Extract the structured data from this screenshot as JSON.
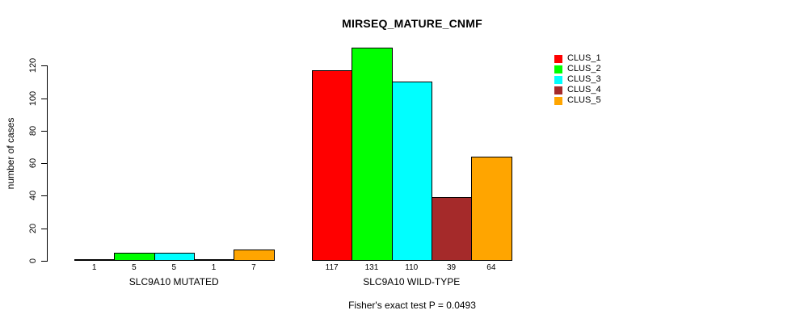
{
  "title": "MIRSEQ_MATURE_CNMF",
  "footer": {
    "fisher_text": "Fisher's exact test P = 0.0493"
  },
  "chart_data": {
    "type": "bar",
    "title": "MIRSEQ_MATURE_CNMF",
    "xlabel": "",
    "ylabel": "number of cases",
    "ylim": [
      0,
      131
    ],
    "yticks": [
      0,
      20,
      40,
      60,
      80,
      100,
      120
    ],
    "grid": false,
    "legend_position": "top-right",
    "bar_value_labels_shown": true,
    "categories": [
      "SLC9A10 MUTATED",
      "SLC9A10 WILD-TYPE"
    ],
    "series": [
      {
        "name": "CLUS_1",
        "color": "#FF0000",
        "values": [
          1,
          117
        ]
      },
      {
        "name": "CLUS_2",
        "color": "#00FF00",
        "values": [
          5,
          131
        ]
      },
      {
        "name": "CLUS_3",
        "color": "#00FFFF",
        "values": [
          5,
          110
        ]
      },
      {
        "name": "CLUS_4",
        "color": "#A52A2A",
        "values": [
          1,
          39
        ]
      },
      {
        "name": "CLUS_5",
        "color": "#FFA500",
        "values": [
          7,
          64
        ]
      }
    ],
    "annotation": "Fisher's exact test P = 0.0493"
  }
}
